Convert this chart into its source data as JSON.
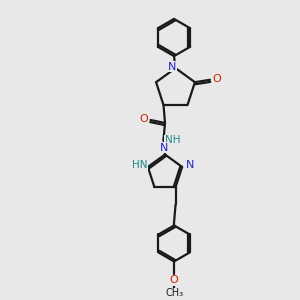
{
  "background_color": "#e8e8e8",
  "bond_color": "#1a1a1a",
  "N_color": "#2222cc",
  "O_color": "#cc2200",
  "text_color": "#1a1a1a",
  "NH_color": "#228888",
  "line_width": 1.6,
  "figsize": [
    3.0,
    3.0
  ],
  "dpi": 100,
  "xlim": [
    0,
    10
  ],
  "ylim": [
    0,
    10
  ]
}
